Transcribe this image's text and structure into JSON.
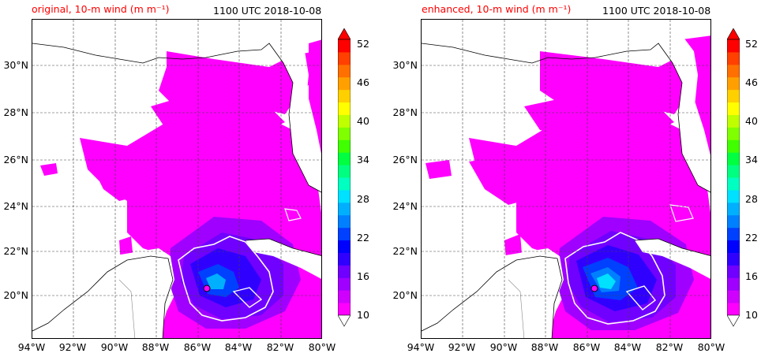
{
  "panels": [
    {
      "id": "original",
      "title_left": "original, 10-m wind (m m⁻¹)",
      "title_right": "1100 UTC 2018-10-08"
    },
    {
      "id": "enhanced",
      "title_left": "enhanced, 10-m wind (m m⁻¹)",
      "title_right": "1100 UTC 2018-10-08"
    }
  ],
  "axes": {
    "lon_labels": [
      "94°W",
      "92°W",
      "90°W",
      "88°W",
      "86°W",
      "84°W",
      "82°W",
      "80°W"
    ],
    "lat_labels": [
      "30°N",
      "28°N",
      "26°N",
      "24°N",
      "22°N",
      "20°N"
    ]
  },
  "colorbar": {
    "ticks": [
      "52",
      "46",
      "40",
      "34",
      "28",
      "22",
      "16",
      "10"
    ],
    "colors": [
      "#ff00ff",
      "#d000ff",
      "#a000ff",
      "#7000ff",
      "#3000ff",
      "#0000ff",
      "#0040ff",
      "#0080ff",
      "#00b0ff",
      "#00e0ff",
      "#00ffc0",
      "#00ff80",
      "#00ff40",
      "#40ff00",
      "#80ff00",
      "#c0ff00",
      "#ffff00",
      "#ffd000",
      "#ffa000",
      "#ff7000",
      "#ff4000",
      "#ff0000"
    ]
  }
}
